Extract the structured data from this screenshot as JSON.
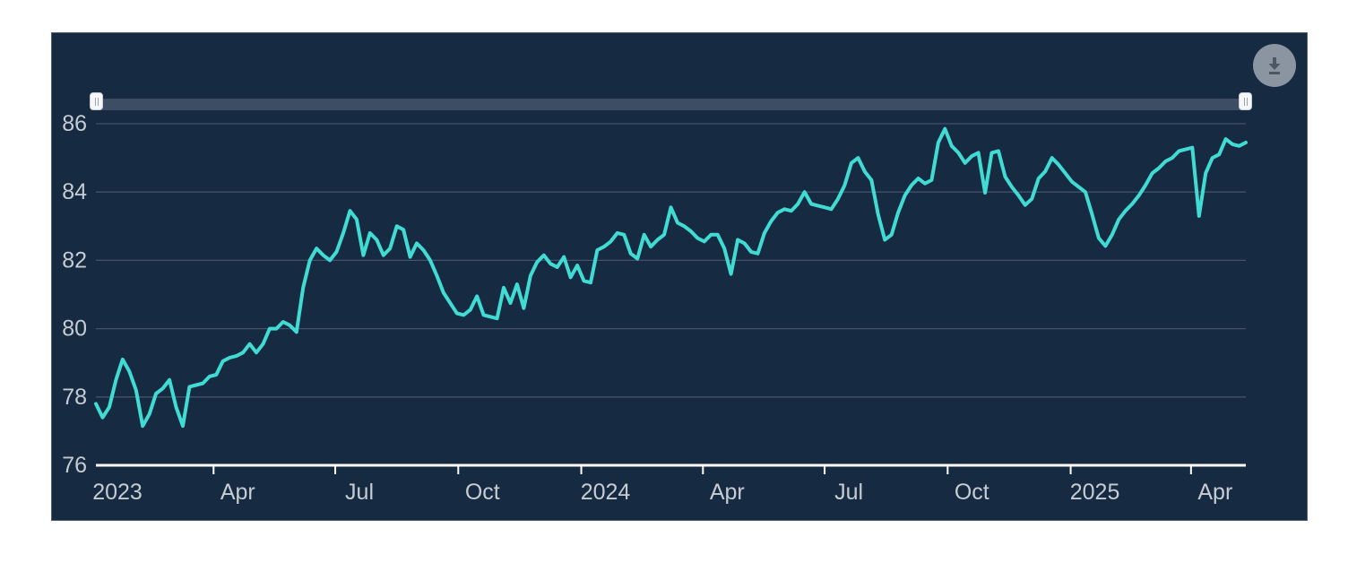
{
  "colors": {
    "page_background": "#ffffff",
    "card_background": "#162a42",
    "line": "#40dcd4",
    "grid": "#42526a",
    "axis": "#ffffff",
    "tick_label": "#c6ccd3",
    "navigator_track": "#3d4e64",
    "navigator_handle": "#f5f6f7",
    "download_button_bg": "#8b95a2",
    "download_icon": "#4b5765"
  },
  "toolbar": {
    "download_button": {
      "icon": "download-icon",
      "tooltip_visible_text": ""
    }
  },
  "navigator": {
    "left_handle_icon": "slider-grip-icon",
    "right_handle_icon": "slider-grip-icon"
  },
  "chart_data": {
    "type": "line",
    "title": "",
    "xlabel": "",
    "ylabel": "",
    "grid": true,
    "legend_position": "none",
    "ylim": [
      76,
      86.3
    ],
    "y_ticks": [
      76,
      78,
      80,
      82,
      84,
      86
    ],
    "x_ticks": [
      {
        "date": "2023-01-01",
        "label": "2023"
      },
      {
        "date": "2023-04-01",
        "label": "Apr"
      },
      {
        "date": "2023-07-01",
        "label": "Jul"
      },
      {
        "date": "2023-10-01",
        "label": "Oct"
      },
      {
        "date": "2024-01-01",
        "label": "2024"
      },
      {
        "date": "2024-04-01",
        "label": "Apr"
      },
      {
        "date": "2024-07-01",
        "label": "Jul"
      },
      {
        "date": "2024-10-01",
        "label": "Oct"
      },
      {
        "date": "2025-01-01",
        "label": "2025"
      },
      {
        "date": "2025-04-01",
        "label": "Apr"
      }
    ],
    "series": [
      {
        "name": "price-series",
        "color": "#40dcd4",
        "start_date": "2023-01-03",
        "end_date": "2025-05-12",
        "point_spacing_days": 5,
        "values": [
          77.8,
          77.4,
          77.7,
          78.5,
          79.1,
          78.75,
          78.2,
          77.15,
          77.5,
          78.1,
          78.25,
          78.5,
          77.7,
          77.15,
          78.3,
          78.35,
          78.4,
          78.6,
          78.65,
          79.05,
          79.15,
          79.2,
          79.3,
          79.55,
          79.3,
          79.55,
          80.0,
          80.0,
          80.2,
          80.1,
          79.9,
          81.2,
          82.0,
          82.35,
          82.15,
          82.0,
          82.25,
          82.8,
          83.45,
          83.2,
          82.15,
          82.8,
          82.6,
          82.15,
          82.35,
          83.0,
          82.9,
          82.1,
          82.5,
          82.3,
          82.0,
          81.55,
          81.05,
          80.75,
          80.45,
          80.4,
          80.55,
          80.95,
          80.4,
          80.35,
          80.3,
          81.2,
          80.75,
          81.3,
          80.6,
          81.55,
          81.95,
          82.15,
          81.9,
          81.8,
          82.1,
          81.5,
          81.85,
          81.4,
          81.35,
          82.3,
          82.4,
          82.55,
          82.8,
          82.75,
          82.2,
          82.05,
          82.75,
          82.4,
          82.6,
          82.75,
          83.55,
          83.1,
          83.0,
          82.85,
          82.65,
          82.55,
          82.75,
          82.75,
          82.35,
          81.6,
          82.6,
          82.5,
          82.25,
          82.2,
          82.8,
          83.15,
          83.4,
          83.5,
          83.45,
          83.65,
          84.0,
          83.65,
          83.6,
          83.55,
          83.5,
          83.8,
          84.2,
          84.85,
          85.0,
          84.6,
          84.35,
          83.35,
          82.6,
          82.75,
          83.4,
          83.9,
          84.2,
          84.4,
          84.25,
          84.35,
          85.45,
          85.85,
          85.35,
          85.15,
          84.85,
          85.05,
          85.15,
          83.98,
          85.15,
          85.2,
          84.45,
          84.15,
          83.9,
          83.62,
          83.8,
          84.4,
          84.6,
          85.0,
          84.8,
          84.55,
          84.3,
          84.15,
          84.0,
          83.35,
          82.65,
          82.42,
          82.75,
          83.2,
          83.45,
          83.65,
          83.9,
          84.2,
          84.55,
          84.7,
          84.9,
          85.0,
          85.2,
          85.25,
          85.3,
          83.3,
          84.55,
          85.0,
          85.1,
          85.55,
          85.4,
          85.35,
          85.45
        ]
      }
    ]
  }
}
